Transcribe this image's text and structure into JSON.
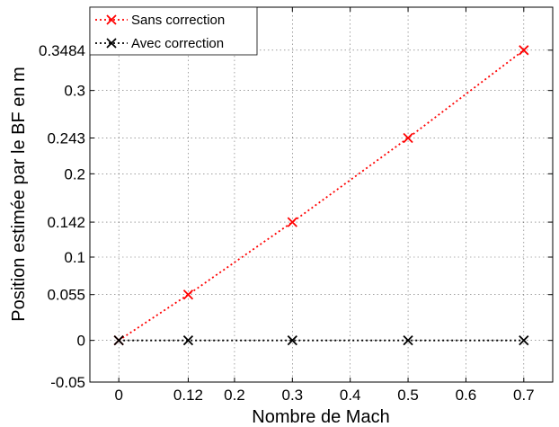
{
  "chart_data": {
    "type": "line",
    "xlabel": "Nombre de Mach",
    "ylabel": "Position estimée par le BF en m",
    "xlim": [
      -0.05,
      0.75
    ],
    "ylim": [
      -0.05,
      0.4
    ],
    "xticks": [
      0,
      0.12,
      0.2,
      0.3,
      0.4,
      0.5,
      0.6,
      0.7
    ],
    "xtick_labels": [
      "0",
      "0.12",
      "0.2",
      "0.3",
      "0.4",
      "0.5",
      "0.6",
      "0.7"
    ],
    "yticks": [
      -0.05,
      0,
      0.055,
      0.1,
      0.142,
      0.2,
      0.243,
      0.3,
      0.3484
    ],
    "ytick_labels": [
      "-0.05",
      "0",
      "0.055",
      "0.1",
      "0.142",
      "0.2",
      "0.243",
      "0.3",
      "0.3484"
    ],
    "grid": true,
    "legend_position": "top-left",
    "x": [
      0,
      0.12,
      0.3,
      0.5,
      0.7
    ],
    "series": [
      {
        "name": "Sans correction",
        "color": "#ff0000",
        "marker": "x",
        "line_style": "dotted",
        "values": [
          0,
          0.055,
          0.142,
          0.243,
          0.3484
        ]
      },
      {
        "name": "Avec correction",
        "color": "#000000",
        "marker": "x",
        "line_style": "dotted",
        "values": [
          0,
          0,
          0,
          0,
          0
        ]
      }
    ]
  }
}
